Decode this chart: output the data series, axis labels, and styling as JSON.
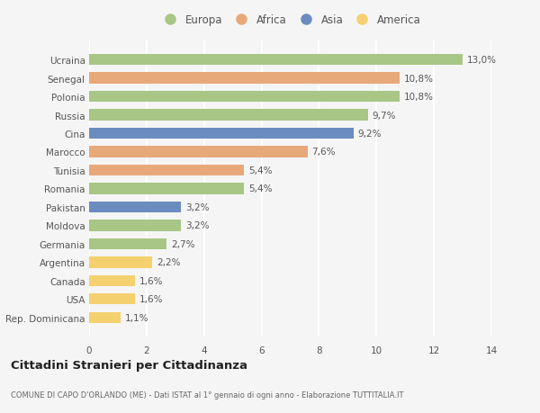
{
  "categories": [
    "Rep. Dominicana",
    "USA",
    "Canada",
    "Argentina",
    "Germania",
    "Moldova",
    "Pakistan",
    "Romania",
    "Tunisia",
    "Marocco",
    "Cina",
    "Russia",
    "Polonia",
    "Senegal",
    "Ucraina"
  ],
  "values": [
    1.1,
    1.6,
    1.6,
    2.2,
    2.7,
    3.2,
    3.2,
    5.4,
    5.4,
    7.6,
    9.2,
    9.7,
    10.8,
    10.8,
    13.0
  ],
  "labels": [
    "1,1%",
    "1,6%",
    "1,6%",
    "2,2%",
    "2,7%",
    "3,2%",
    "3,2%",
    "5,4%",
    "5,4%",
    "7,6%",
    "9,2%",
    "9,7%",
    "10,8%",
    "10,8%",
    "13,0%"
  ],
  "colors": [
    "#f5d06e",
    "#f5d06e",
    "#f5d06e",
    "#f5d06e",
    "#a8c685",
    "#a8c685",
    "#6b8cbf",
    "#a8c685",
    "#e8a97a",
    "#e8a97a",
    "#6b8cbf",
    "#a8c685",
    "#a8c685",
    "#e8a97a",
    "#a8c685"
  ],
  "legend_names": [
    "Europa",
    "Africa",
    "Asia",
    "America"
  ],
  "legend_colors": [
    "#a8c685",
    "#e8a97a",
    "#6b8cbf",
    "#f5d06e"
  ],
  "title": "Cittadini Stranieri per Cittadinanza",
  "subtitle": "COMUNE DI CAPO D'ORLANDO (ME) - Dati ISTAT al 1° gennaio di ogni anno - Elaborazione TUTTITALIA.IT",
  "xlim": [
    0,
    14
  ],
  "xticks": [
    0,
    2,
    4,
    6,
    8,
    10,
    12,
    14
  ],
  "background_color": "#f5f5f5",
  "grid_color": "#ffffff",
  "bar_height": 0.6
}
